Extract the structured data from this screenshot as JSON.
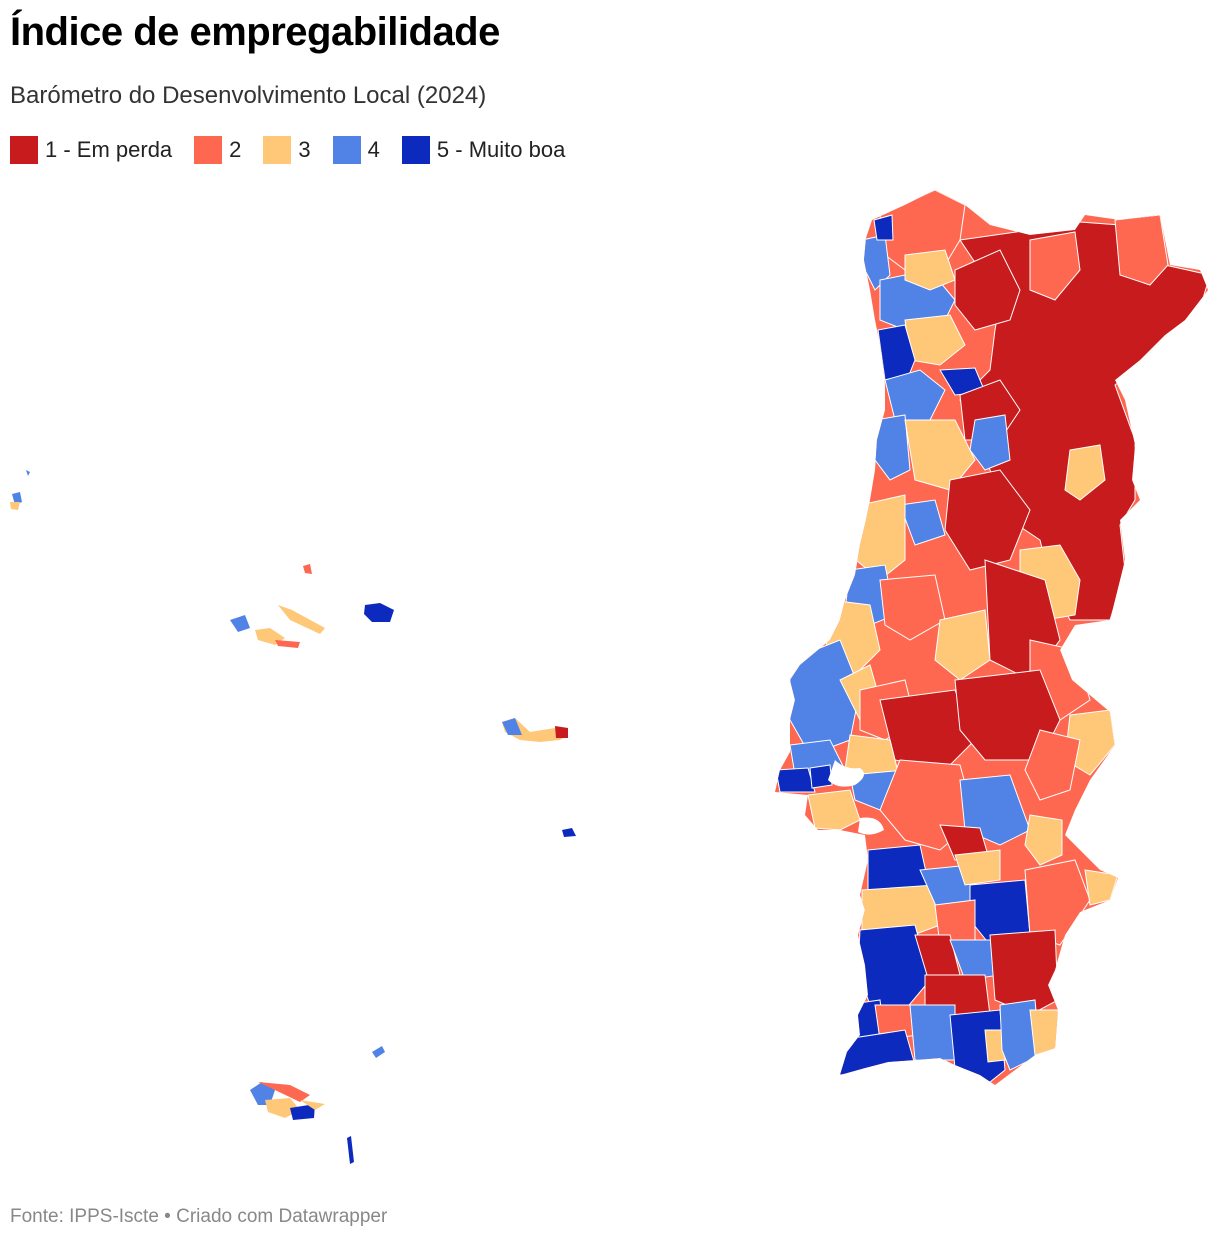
{
  "title": "Índice de empregabilidade",
  "subtitle": "Barómetro do Desenvolvimento Local (2024)",
  "legend": [
    {
      "label": "1 - Em perda",
      "color": "#c81b1e"
    },
    {
      "label": "2",
      "color": "#fe6750"
    },
    {
      "label": "3",
      "color": "#fec878"
    },
    {
      "label": "4",
      "color": "#5183e6"
    },
    {
      "label": "5 - Muito boa",
      "color": "#0d2abf"
    }
  ],
  "footer": "Fonte: IPPS-Iscte • Criado com Datawrapper"
}
